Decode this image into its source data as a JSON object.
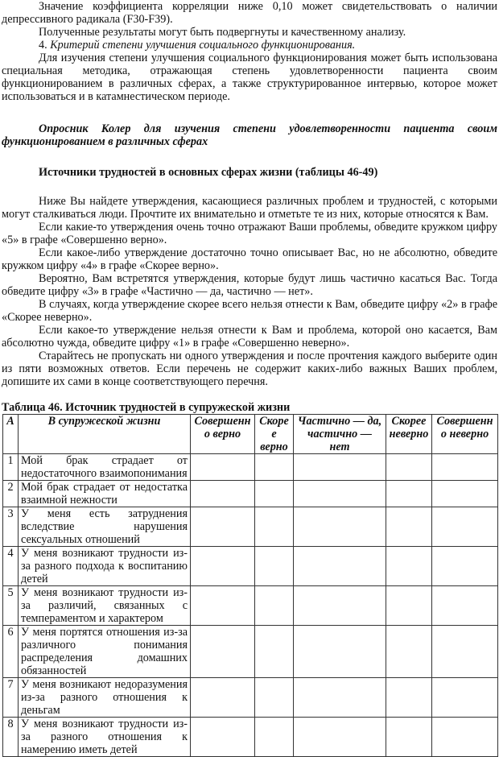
{
  "paragraphs": [
    "Значение коэффициента корреляции ниже 0,10 может свидетельствовать о наличии депрессивного радикала (F30-F39).",
    "Полученные результаты могут быть подвергнуты и качественному анализу.",
    "Критерий степени улучшения социального функционирования.",
    "Для изучения степени улучшения социального функционирования может быть использована специальная методика, отражающая степень удовлетворенности пациента своим функционированием в различных сферах, а также структурированное интервью, которое может использоваться и в катамнестическом периоде."
  ],
  "item_number": "4. ",
  "questionnaire_title": "Опросник Колер для изучения степени удовлетворенности пациента своим функционированием в различных сферах",
  "section_title": "Источники трудностей в основных сферах жизни (таблицы 46-49)",
  "instructions": [
    "Ниже Вы найдете утверждения, касающиеся различных проблем и трудностей, с которыми могут сталкиваться люди. Прочтите их внимательно и отметьте те из них, которые относятся к Вам.",
    "Если какие-то утверждения очень точно отражают Ваши проблемы, обведите кружком цифру «5» в графе «Совершенно верно».",
    "Если какое-либо утверждение достаточно точно описывает Вас, но не абсолютно, обведите кружком цифру «4» в графе «Скорее верно».",
    "Вероятно, Вам встретятся утверждения, которые будут лишь частично касаться Вас. Тогда обведите цифру «3» в графе «Частично — да, частично — нет».",
    "В случаях, когда утверждение скорее всего нельзя отнести к Вам, обведите цифру «2» в графе «Скорее неверно».",
    "Если какое-то утверждение нельзя отнести к Вам и проблема, которой оно касается, Вам абсолютно чужда, обведите цифру «1» в графе «Совершенно неверно».",
    "Старайтесь не пропускать ни одного утверждения и после прочтения каждого выберите один из пяти возможных ответов. Если перечень не содержит каких-либо важных Ваших проблем, допишите их сами в конце соответствующего перечня."
  ],
  "table": {
    "caption": "Таблица 46. Источник трудностей в супружеской жизни",
    "headers": [
      "А",
      "В супружеской жизни",
      "Совершенно верно",
      "Скорее верно",
      "Частично — да, частично — нет",
      "Скорее неверно",
      "Совершенно неверно"
    ],
    "rows": [
      {
        "n": "1",
        "text": "Мой брак страдает от недостаточного взаимопонимания"
      },
      {
        "n": "2",
        "text": "Мой брак страдает от недостатка взаимной нежности"
      },
      {
        "n": "3",
        "text": "У меня есть затруднения вследствие нарушения сексуальных отношений"
      },
      {
        "n": "4",
        "text": "У меня возникают трудности из-за разного подхода к воспитанию детей"
      },
      {
        "n": "5",
        "text": "У меня возникают трудности из-за различий, связанных с темпераментом и характером"
      },
      {
        "n": "6",
        "text": "У меня портятся отношения из-за различного понимания распределения домашних обязанностей"
      },
      {
        "n": "7",
        "text": "У меня возникают недоразумения из-за разного отношения к деньгам"
      },
      {
        "n": "8",
        "text": "У меня возникают трудности из-за разного отношения к намерению иметь детей"
      }
    ]
  }
}
